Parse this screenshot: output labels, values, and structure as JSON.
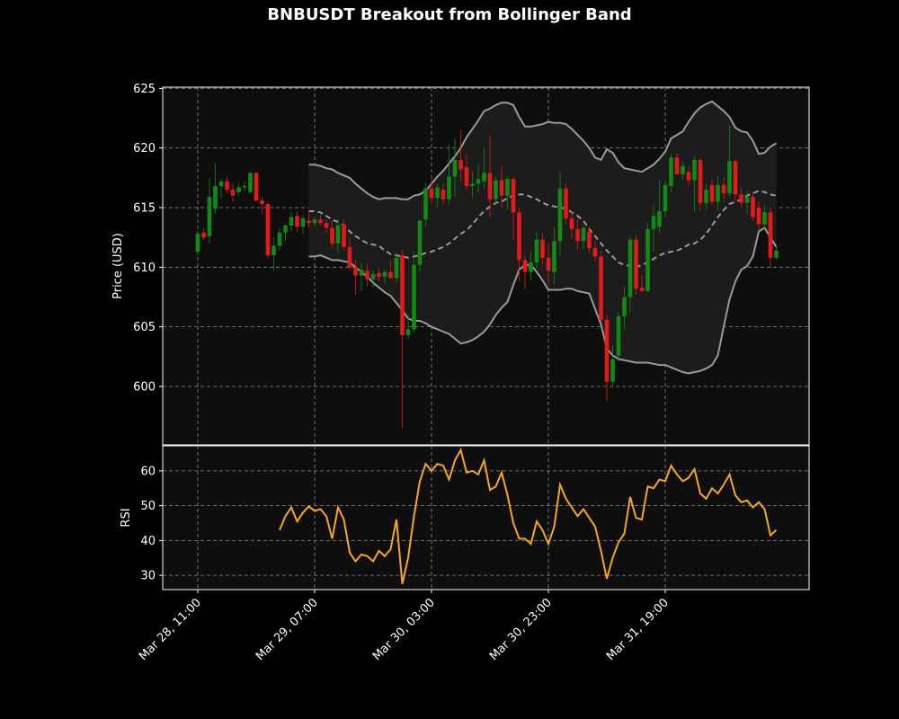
{
  "chart_data": [
    {
      "type": "candlestick",
      "title": "BNBUSDT Breakout from Bollinger Band",
      "ylabel": "Price (USD)",
      "up_color": "#138a13",
      "down_color": "#e31a1a",
      "open": [
        611.3,
        612.9,
        612.6,
        614.9,
        616.8,
        617.2,
        616.5,
        616.3,
        616.7,
        616.3,
        617.9,
        615.6,
        615.3,
        611.0,
        611.8,
        612.9,
        613.5,
        614.3,
        613.4,
        613.9,
        613.7,
        614.0,
        613.7,
        613.3,
        612.0,
        613.6,
        611.7,
        610.0,
        609.3,
        609.7,
        609.0,
        609.5,
        609.2,
        609.6,
        609.1,
        611.0,
        604.3,
        604.8,
        610.2,
        614.0,
        616.6,
        615.8,
        616.5,
        615.7,
        617.6,
        619.0,
        618.4,
        616.8,
        617.0,
        617.2,
        617.9,
        615.7,
        617.3,
        616.0,
        617.4,
        614.6,
        610.6,
        609.6,
        610.4,
        612.3,
        610.8,
        609.6,
        612.2,
        616.6,
        614.1,
        613.2,
        612.2,
        613.0,
        611.6,
        610.9,
        605.6,
        600.4,
        602.6,
        605.9,
        607.5,
        612.3,
        608.3,
        608.0,
        613.2,
        613.4,
        614.7,
        616.8,
        619.2,
        617.8,
        618.0,
        617.3,
        619.0,
        615.4,
        616.9,
        615.5,
        616.9,
        616.2,
        618.9,
        616.1,
        615.4,
        615.9,
        615.0,
        613.6,
        614.6,
        610.8
      ],
      "high": [
        613.0,
        613.3,
        617.5,
        618.7,
        617.4,
        617.6,
        617.0,
        617.0,
        617.2,
        618.0,
        618.0,
        615.9,
        615.5,
        612.5,
        613.3,
        613.6,
        614.6,
        614.7,
        614.4,
        614.7,
        614.2,
        614.4,
        614.0,
        613.9,
        614.0,
        614.0,
        612.5,
        610.6,
        610.4,
        610.3,
        609.7,
        610.0,
        609.8,
        610.6,
        611.2,
        611.4,
        606.0,
        611.3,
        614.0,
        617.1,
        617.5,
        617.0,
        617.0,
        620.3,
        620.8,
        621.5,
        619.4,
        618.1,
        618.6,
        620.0,
        621.0,
        617.6,
        618.5,
        617.6,
        617.6,
        615.0,
        611.0,
        611.3,
        613.0,
        612.8,
        612.0,
        613.3,
        618.0,
        617.0,
        614.7,
        614.0,
        613.5,
        613.4,
        612.2,
        611.4,
        606.0,
        603.5,
        606.2,
        608.4,
        612.6,
        612.7,
        609.3,
        613.7,
        615.2,
        617.3,
        617.2,
        619.5,
        619.6,
        618.9,
        618.5,
        619.3,
        619.2,
        617.0,
        617.4,
        617.6,
        617.5,
        621.9,
        619.0,
        616.6,
        616.4,
        616.3,
        615.5,
        615.2,
        615.0,
        611.8
      ],
      "low": [
        611.0,
        612.3,
        612.0,
        614.5,
        615.8,
        616.2,
        615.5,
        616.0,
        616.4,
        616.2,
        615.5,
        614.5,
        610.8,
        609.7,
        611.4,
        612.2,
        613.0,
        613.0,
        612.8,
        613.3,
        613.4,
        613.5,
        612.9,
        611.6,
        611.2,
        611.4,
        609.7,
        607.7,
        608.0,
        608.4,
        608.3,
        608.8,
        608.6,
        609.0,
        608.7,
        596.5,
        604.0,
        604.5,
        609.6,
        613.4,
        615.4,
        615.0,
        615.3,
        615.2,
        616.0,
        617.2,
        616.5,
        615.8,
        616.3,
        616.6,
        614.2,
        615.2,
        615.0,
        614.8,
        612.3,
        608.8,
        608.2,
        608.9,
        609.9,
        610.2,
        608.5,
        608.6,
        611.0,
        613.6,
        612.4,
        611.4,
        611.5,
        611.2,
        610.5,
        605.4,
        598.8,
        600.0,
        602.1,
        604.8,
        606.2,
        607.7,
        607.9,
        607.9,
        611.3,
        612.9,
        614.2,
        616.3,
        617.8,
        617.3,
        616.8,
        614.6,
        614.8,
        614.8,
        615.3,
        614.8,
        615.6,
        615.9,
        615.6,
        615.0,
        614.5,
        613.9,
        613.0,
        613.1,
        610.0,
        610.6
      ],
      "close": [
        612.8,
        612.5,
        615.9,
        616.8,
        617.2,
        616.5,
        616.0,
        616.7,
        616.8,
        617.9,
        615.6,
        615.3,
        611.0,
        611.8,
        612.9,
        613.5,
        614.2,
        613.4,
        614.1,
        613.7,
        614.0,
        613.7,
        613.3,
        612.0,
        613.5,
        611.7,
        610.0,
        609.3,
        609.8,
        609.0,
        609.4,
        609.2,
        609.6,
        609.1,
        610.8,
        604.3,
        604.8,
        610.2,
        613.9,
        616.6,
        615.8,
        616.7,
        615.7,
        617.6,
        619.0,
        618.2,
        616.8,
        617.0,
        617.4,
        617.9,
        615.7,
        617.3,
        616.0,
        617.4,
        614.6,
        610.6,
        609.6,
        610.4,
        612.3,
        610.8,
        609.7,
        612.2,
        616.6,
        614.1,
        613.2,
        612.2,
        613.3,
        611.6,
        610.9,
        605.6,
        600.4,
        602.3,
        605.9,
        607.5,
        612.3,
        608.2,
        608.0,
        613.2,
        614.3,
        614.7,
        616.9,
        619.2,
        617.8,
        618.5,
        617.3,
        619.0,
        615.4,
        616.5,
        615.5,
        616.9,
        616.2,
        618.9,
        616.1,
        615.4,
        615.9,
        614.2,
        613.6,
        614.6,
        610.8,
        611.4
      ],
      "band_fill": "#1c1c1c",
      "bands": [
        {
          "color": "#9a9a9a",
          "style": "solid",
          "values": [
            null,
            null,
            null,
            null,
            null,
            null,
            null,
            null,
            null,
            null,
            null,
            null,
            null,
            null,
            null,
            null,
            null,
            null,
            null,
            618.6,
            618.6,
            618.5,
            618.3,
            618.2,
            617.9,
            617.7,
            617.5,
            617.0,
            616.6,
            616.2,
            615.9,
            615.7,
            615.8,
            615.8,
            615.8,
            615.7,
            615.7,
            616.0,
            616.1,
            616.4,
            617.0,
            617.6,
            618.1,
            618.7,
            619.3,
            620.0,
            620.9,
            621.6,
            622.3,
            623.1,
            623.3,
            623.6,
            623.8,
            623.8,
            623.6,
            622.6,
            621.8,
            621.8,
            621.9,
            622.0,
            622.2,
            622.1,
            622.1,
            622.0,
            621.6,
            621.1,
            620.6,
            620.0,
            619.2,
            619.0,
            619.9,
            619.6,
            618.8,
            618.3,
            618.2,
            618.1,
            618.0,
            618.3,
            618.6,
            619.1,
            619.7,
            620.8,
            621.1,
            621.4,
            622.2,
            622.9,
            623.4,
            623.7,
            623.9,
            623.5,
            623.1,
            622.6,
            621.7,
            621.4,
            621.3,
            620.6,
            619.5,
            619.6,
            620.1,
            620.4
          ]
        },
        {
          "color": "#9a9a9a",
          "style": "dashed",
          "values": [
            null,
            null,
            null,
            null,
            null,
            null,
            null,
            null,
            null,
            null,
            null,
            null,
            null,
            null,
            null,
            null,
            null,
            null,
            null,
            614.7,
            614.7,
            614.6,
            614.3,
            614.0,
            613.8,
            613.5,
            613.0,
            612.6,
            612.3,
            612.0,
            611.9,
            611.8,
            611.4,
            611.1,
            611.0,
            610.9,
            610.8,
            610.9,
            611.0,
            611.2,
            611.3,
            611.5,
            611.7,
            612.0,
            612.4,
            612.8,
            613.1,
            613.6,
            614.2,
            614.7,
            615.1,
            615.4,
            615.5,
            615.8,
            616.0,
            616.1,
            616.1,
            615.9,
            615.7,
            615.4,
            615.2,
            615.1,
            615.0,
            614.9,
            614.6,
            614.3,
            613.9,
            613.2,
            612.6,
            612.0,
            611.4,
            610.9,
            610.4,
            610.2,
            610.1,
            610.0,
            610.2,
            610.4,
            610.7,
            611.0,
            611.2,
            611.3,
            611.4,
            611.6,
            611.9,
            612.0,
            612.3,
            612.8,
            613.5,
            614.2,
            614.8,
            615.3,
            615.5,
            615.7,
            616.0,
            616.2,
            616.4,
            616.3,
            616.1,
            616.0
          ]
        },
        {
          "color": "#9a9a9a",
          "style": "solid",
          "values": [
            null,
            null,
            null,
            null,
            null,
            null,
            null,
            null,
            null,
            null,
            null,
            null,
            null,
            null,
            null,
            null,
            null,
            null,
            null,
            610.9,
            610.9,
            611.0,
            610.8,
            610.6,
            610.6,
            610.5,
            610.4,
            610.0,
            609.6,
            609.2,
            608.7,
            608.3,
            607.9,
            607.6,
            607.0,
            606.4,
            605.7,
            605.5,
            605.5,
            605.3,
            605.0,
            604.8,
            604.6,
            604.4,
            604.0,
            603.6,
            603.7,
            603.9,
            604.2,
            604.6,
            605.2,
            606.0,
            606.6,
            607.1,
            608.5,
            609.8,
            610.2,
            610.2,
            609.6,
            608.9,
            608.1,
            608.1,
            608.1,
            608.2,
            608.2,
            608.0,
            607.9,
            607.8,
            606.5,
            605.2,
            603.2,
            602.6,
            602.3,
            602.2,
            602.1,
            602.0,
            602.0,
            602.0,
            601.9,
            601.8,
            601.8,
            601.6,
            601.4,
            601.2,
            601.1,
            601.2,
            601.3,
            601.5,
            601.8,
            602.6,
            605.0,
            607.3,
            608.8,
            609.8,
            610.1,
            610.9,
            613.0,
            613.3,
            612.5,
            611.7
          ]
        }
      ],
      "ylim": [
        595.1,
        625.1
      ],
      "yticks": [
        600,
        605,
        610,
        615,
        620,
        625
      ],
      "grid": true
    },
    {
      "type": "line",
      "ylabel": "RSI",
      "categories": [
        "Mar 28, 11:00",
        null,
        null,
        null,
        null,
        null,
        null,
        null,
        null,
        null,
        null,
        null,
        null,
        null,
        null,
        null,
        null,
        null,
        null,
        null,
        "Mar 29, 07:00",
        null,
        null,
        null,
        null,
        null,
        null,
        null,
        null,
        null,
        null,
        null,
        null,
        null,
        null,
        null,
        null,
        null,
        null,
        null,
        "Mar 30, 03:00",
        null,
        null,
        null,
        null,
        null,
        null,
        null,
        null,
        null,
        null,
        null,
        null,
        null,
        null,
        null,
        null,
        null,
        null,
        null,
        "Mar 30, 23:00",
        null,
        null,
        null,
        null,
        null,
        null,
        null,
        null,
        null,
        null,
        null,
        null,
        null,
        null,
        null,
        null,
        null,
        null,
        null,
        "Mar 31, 19:00",
        null,
        null,
        null,
        null,
        null,
        null,
        null,
        null,
        null,
        null,
        null,
        null,
        null,
        null,
        null,
        null,
        null,
        null,
        null
      ],
      "color": "#f5a623",
      "values": [
        null,
        null,
        null,
        null,
        null,
        null,
        null,
        null,
        null,
        null,
        null,
        null,
        null,
        null,
        43,
        47,
        49.5,
        45.5,
        48,
        49.8,
        48.5,
        49,
        47,
        40.5,
        49.5,
        46,
        36.5,
        34,
        36,
        35.5,
        34,
        37,
        35.5,
        37.5,
        46,
        27.5,
        35,
        47,
        57,
        62,
        60,
        62,
        61.5,
        57.5,
        63,
        66,
        59.5,
        60,
        59,
        63,
        54.5,
        55.5,
        59.5,
        53,
        45,
        40.5,
        40.5,
        39,
        45.5,
        43,
        39,
        44,
        56,
        52,
        49.5,
        47,
        49,
        46.5,
        44,
        37,
        29,
        35,
        39.5,
        42,
        52.5,
        46.5,
        46,
        55.5,
        55,
        57.5,
        57,
        61.5,
        59,
        57,
        58,
        60.5,
        53.5,
        52,
        55,
        53.5,
        56,
        59,
        53,
        51,
        51.5,
        49.5,
        51,
        49,
        41.5,
        43
      ],
      "ylim": [
        25.9,
        67.2
      ],
      "yticks": [
        30,
        40,
        50,
        60
      ],
      "grid": true
    }
  ]
}
